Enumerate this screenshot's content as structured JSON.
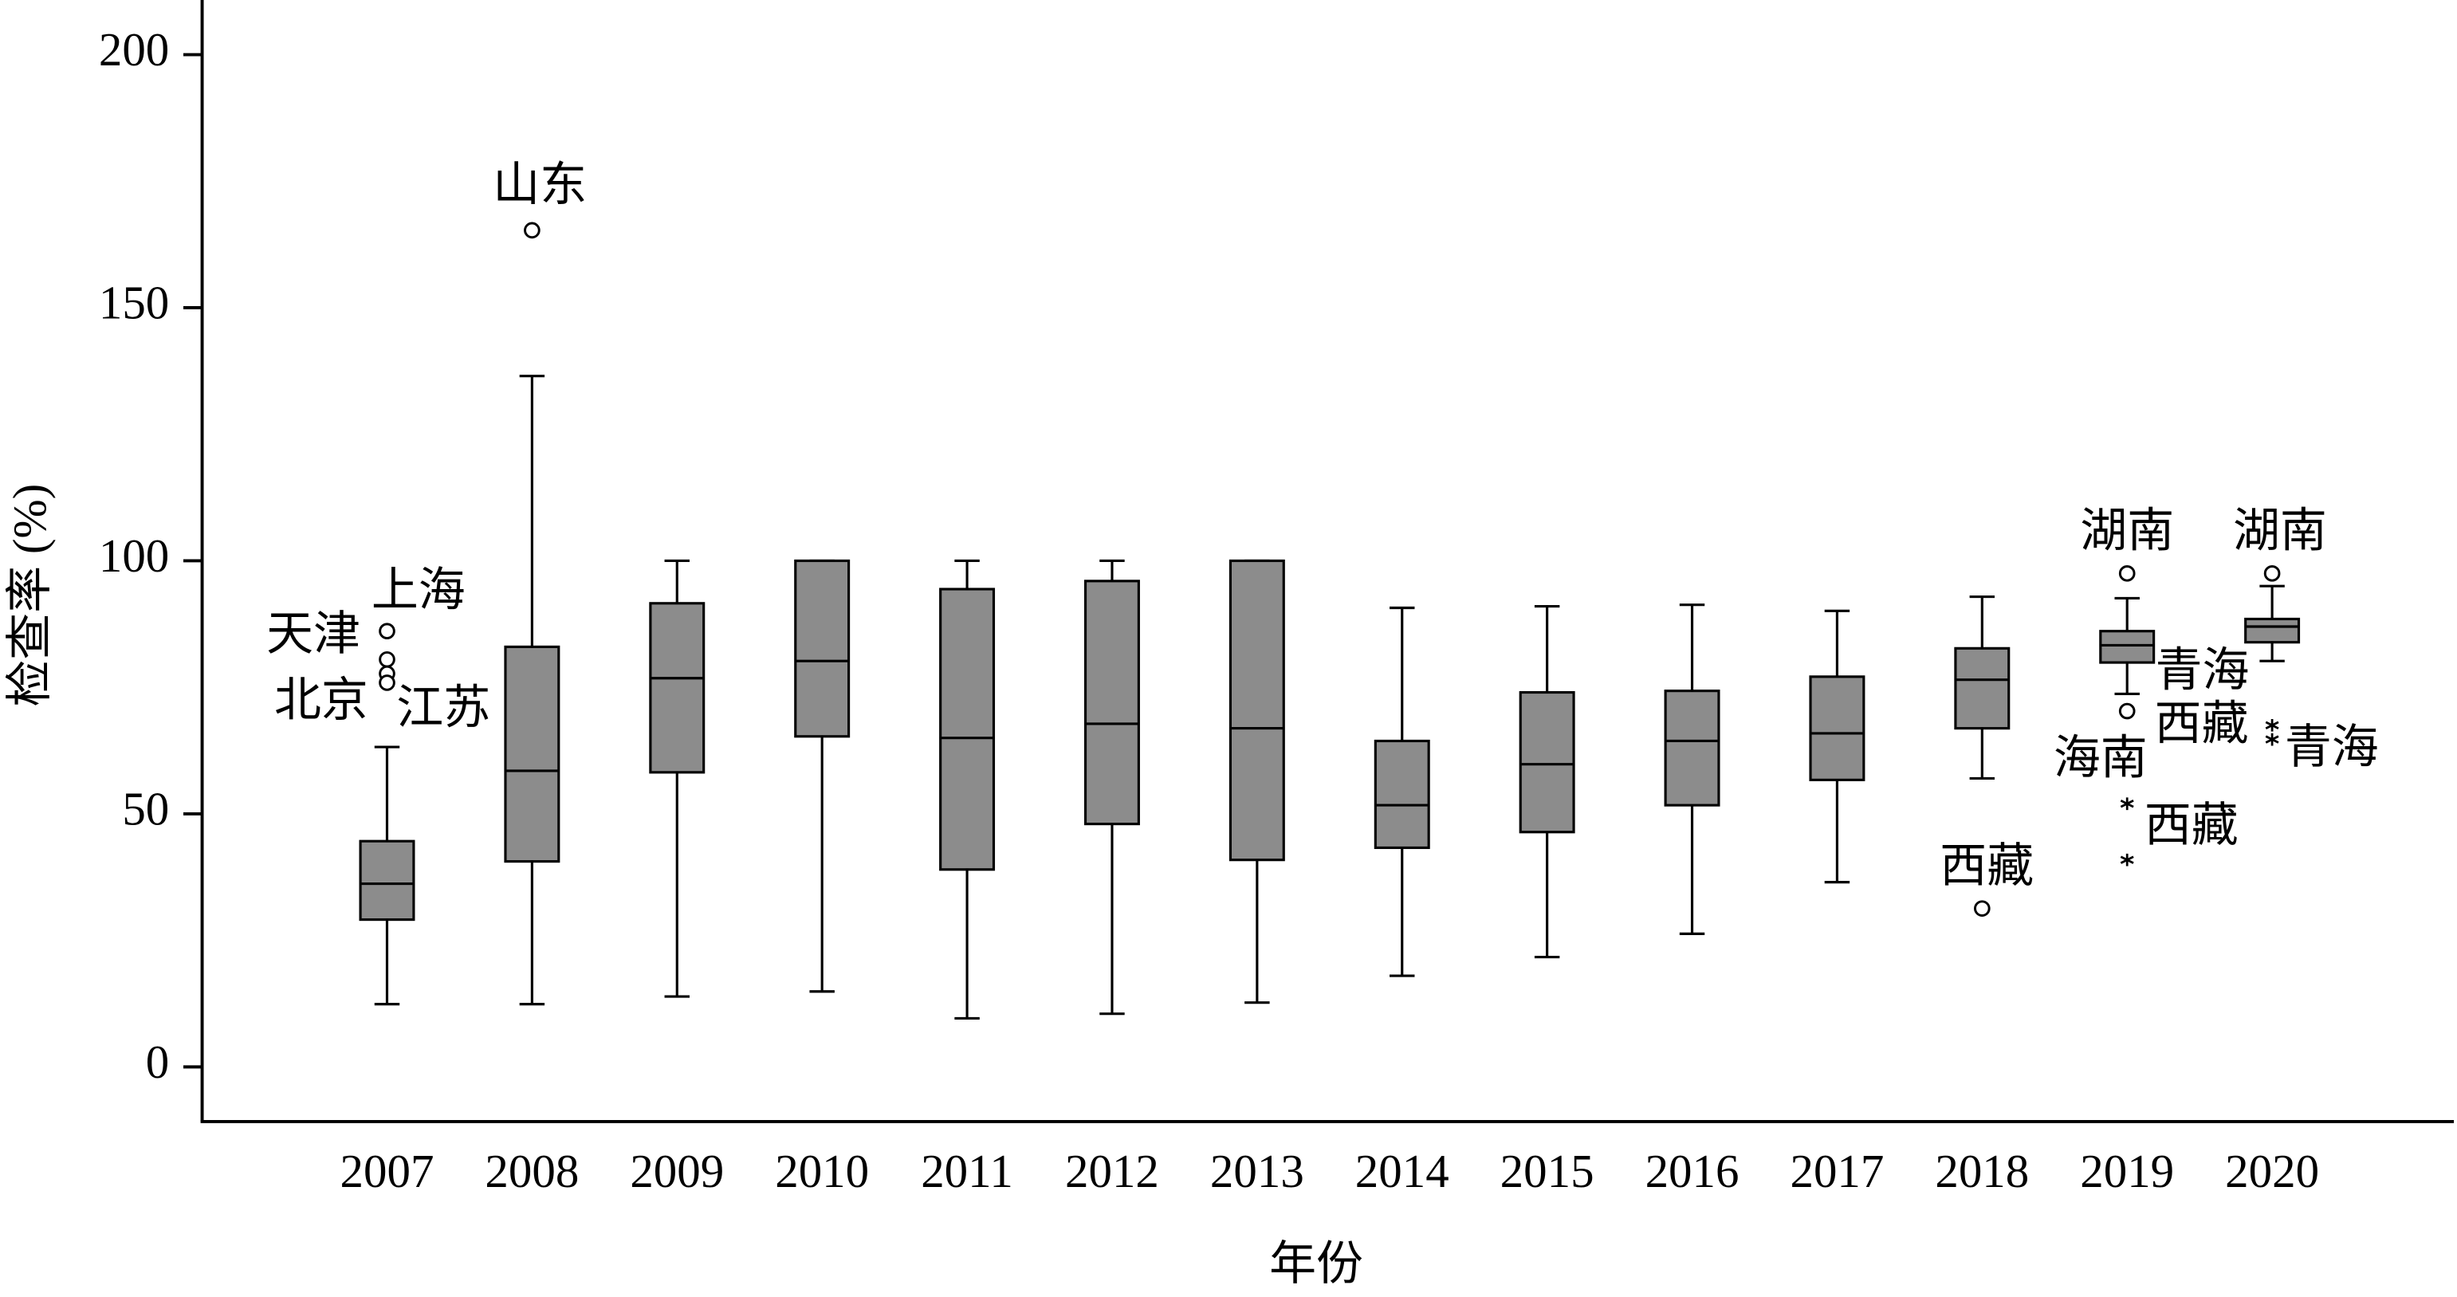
{
  "chart_data": {
    "type": "box",
    "x_label": "年份",
    "y_label": "检查率 (%)",
    "categories": [
      "2007",
      "2008",
      "2009",
      "2010",
      "2011",
      "2012",
      "2013",
      "2014",
      "2015",
      "2016",
      "2017",
      "2018",
      "2019",
      "2020"
    ],
    "boxes": [
      {
        "low": 12.4,
        "q1": 29.1,
        "median": 36.2,
        "q3": 44.6,
        "high": 63.2
      },
      {
        "low": 12.4,
        "q1": 40.6,
        "median": 58.5,
        "q3": 83,
        "high": 136.5
      },
      {
        "low": 13.9,
        "q1": 58.2,
        "median": 76.8,
        "q3": 91.6,
        "high": 100
      },
      {
        "low": 14.9,
        "q1": 65.3,
        "median": 80.2,
        "q3": 100,
        "high": 100
      },
      {
        "low": 9.6,
        "q1": 39,
        "median": 65,
        "q3": 94.4,
        "high": 100
      },
      {
        "low": 10.5,
        "q1": 48,
        "median": 67.8,
        "q3": 96,
        "high": 100
      },
      {
        "low": 12.7,
        "q1": 40.9,
        "median": 66.9,
        "q3": 100,
        "high": 100
      },
      {
        "low": 18,
        "q1": 43.3,
        "median": 51.7,
        "q3": 64.4,
        "high": 90.7
      },
      {
        "low": 21.7,
        "q1": 46.4,
        "median": 59.8,
        "q3": 74,
        "high": 91
      },
      {
        "low": 26.3,
        "q1": 51.7,
        "median": 64.4,
        "q3": 74.3,
        "high": 91.3
      },
      {
        "low": 36.5,
        "q1": 56.7,
        "median": 65.9,
        "q3": 77.1,
        "high": 90.1
      },
      {
        "low": 57,
        "q1": 66.9,
        "median": 76.5,
        "q3": 82.7,
        "high": 92.9
      },
      {
        "low": 73.7,
        "q1": 79.9,
        "median": 83.3,
        "q3": 86.1,
        "high": 92.6
      },
      {
        "low": 80.2,
        "q1": 83.9,
        "median": 87,
        "q3": 88.5,
        "high": 95
      }
    ],
    "outliers": [
      [
        {
          "value": 86.1,
          "label": "上海",
          "marker": "circle"
        },
        {
          "value": 80.5,
          "label": "天津",
          "marker": "circle"
        },
        {
          "value": 77.7,
          "label": "北京",
          "marker": "circle"
        },
        {
          "value": 75.9,
          "label": "江苏",
          "marker": "circle"
        }
      ],
      [
        {
          "value": 165.3,
          "label": "山东",
          "marker": "circle"
        }
      ],
      [],
      [],
      [],
      [],
      [],
      [],
      [],
      [],
      [],
      [
        {
          "value": 31.3,
          "label": "西藏",
          "marker": "circle"
        }
      ],
      [
        {
          "value": 97.5,
          "label": "湖南",
          "marker": "circle"
        },
        {
          "value": 70.3,
          "label": "青海",
          "marker": "circle"
        },
        {
          "value": 52,
          "label": "海南",
          "marker": "star"
        },
        {
          "value": 40.9,
          "label": "西藏",
          "marker": "star"
        }
      ],
      [
        {
          "value": 97.5,
          "label": "湖南",
          "marker": "circle"
        },
        {
          "value": 67.5,
          "label": "西藏",
          "marker": "star"
        },
        {
          "value": 64.7,
          "label": "青海",
          "marker": "star"
        }
      ]
    ],
    "color": "#8c8c8c",
    "ylim": [
      -10.8,
      210.8
    ],
    "yticks": [
      0,
      50,
      100,
      150,
      200
    ]
  }
}
